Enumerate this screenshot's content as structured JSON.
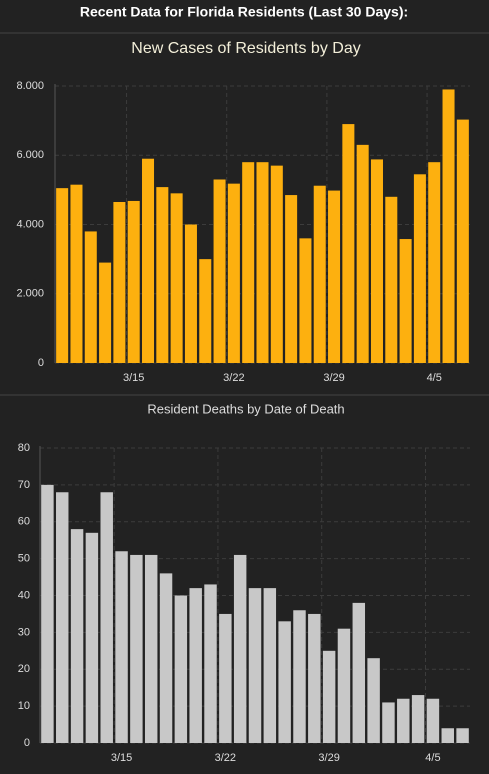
{
  "header": {
    "title": "Recent Data for Florida Residents (Last 30 Days):"
  },
  "chart_data": [
    {
      "type": "bar",
      "title": "New Cases of Residents by Day",
      "color": "#fdb00f",
      "categories": [
        null,
        null,
        null,
        null,
        null,
        "3/15",
        null,
        null,
        null,
        null,
        null,
        null,
        "3/22",
        null,
        null,
        null,
        null,
        null,
        null,
        "3/29",
        null,
        null,
        null,
        null,
        null,
        null,
        "4/5",
        null,
        null
      ],
      "values": [
        5050,
        5150,
        3800,
        2900,
        4650,
        4680,
        5900,
        5080,
        4900,
        4000,
        3000,
        5300,
        5180,
        5800,
        5800,
        5700,
        4850,
        3600,
        5120,
        4980,
        6900,
        6300,
        5880,
        4800,
        3580,
        5450,
        5800,
        7900,
        7030
      ],
      "ylim": [
        0,
        8000
      ],
      "yticks": [
        0,
        {
          "value": 2000,
          "label": "2.000"
        },
        {
          "value": 4000,
          "label": "4.000"
        },
        {
          "value": 6000,
          "label": "6.000"
        },
        {
          "value": 8000,
          "label": "8.000"
        }
      ],
      "grid": true
    },
    {
      "type": "bar",
      "title": "Resident Deaths by Date of Death",
      "color": "#c8c8c8",
      "categories": [
        null,
        null,
        null,
        null,
        null,
        "3/15",
        null,
        null,
        null,
        null,
        null,
        null,
        "3/22",
        null,
        null,
        null,
        null,
        null,
        null,
        "3/29",
        null,
        null,
        null,
        null,
        null,
        null,
        "4/5",
        null,
        null
      ],
      "values": [
        70,
        68,
        58,
        57,
        68,
        52,
        51,
        51,
        46,
        40,
        42,
        43,
        35,
        51,
        42,
        42,
        33,
        36,
        35,
        25,
        31,
        38,
        23,
        11,
        12,
        13,
        12,
        4,
        4
      ],
      "ylim": [
        0,
        80
      ],
      "yticks": [
        0,
        10,
        20,
        30,
        40,
        50,
        60,
        70,
        80
      ],
      "grid": true
    }
  ]
}
